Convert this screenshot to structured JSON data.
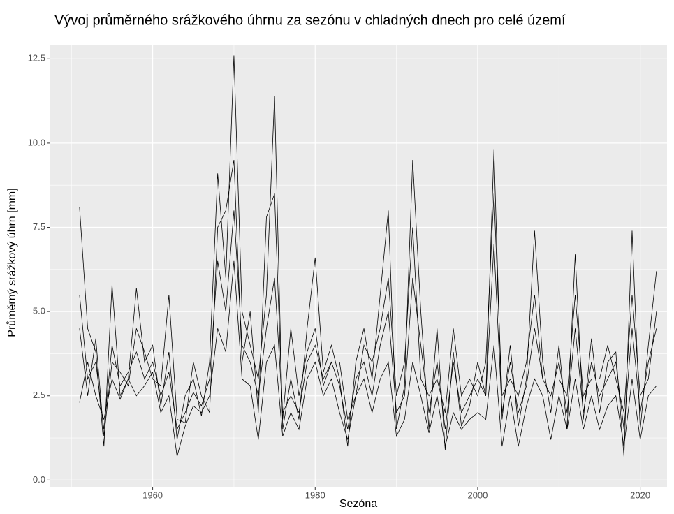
{
  "chart_data": {
    "type": "line",
    "title": "Vývoj průměrného srážkového úhrnu za sezónu v chladných dnech pro celé území",
    "xlabel": "Sezóna",
    "ylabel": "Průměrný srážkový úhrn [mm]",
    "x": [
      1951,
      1952,
      1953,
      1954,
      1955,
      1956,
      1957,
      1958,
      1959,
      1960,
      1961,
      1962,
      1963,
      1964,
      1965,
      1966,
      1967,
      1968,
      1969,
      1970,
      1971,
      1972,
      1973,
      1974,
      1975,
      1976,
      1977,
      1978,
      1979,
      1980,
      1981,
      1982,
      1983,
      1984,
      1985,
      1986,
      1987,
      1988,
      1989,
      1990,
      1991,
      1992,
      1993,
      1994,
      1995,
      1996,
      1997,
      1998,
      1999,
      2000,
      2001,
      2002,
      2003,
      2004,
      2005,
      2006,
      2007,
      2008,
      2009,
      2010,
      2011,
      2012,
      2013,
      2014,
      2015,
      2016,
      2017,
      2018,
      2019,
      2020,
      2021,
      2022
    ],
    "series": [
      {
        "color": "#000000",
        "values": [
          8.1,
          4.5,
          3.8,
          1.0,
          5.8,
          2.5,
          3.0,
          5.7,
          3.5,
          4.0,
          2.2,
          3.8,
          1.2,
          2.5,
          3.0,
          1.9,
          3.5,
          9.1,
          6.0,
          12.6,
          5.0,
          4.0,
          3.0,
          5.5,
          11.4,
          1.5,
          3.0,
          1.8,
          4.5,
          6.6,
          3.2,
          4.0,
          3.0,
          1.0,
          3.5,
          4.5,
          3.0,
          5.5,
          8.0,
          1.5,
          2.8,
          9.5,
          5.0,
          1.5,
          4.5,
          0.9,
          3.8,
          1.6,
          2.2,
          3.5,
          2.5,
          9.8,
          1.8,
          4.0,
          1.6,
          3.0,
          7.4,
          3.5,
          2.0,
          4.0,
          1.5,
          6.7,
          1.8,
          4.2,
          2.0,
          3.5,
          3.8,
          0.7,
          7.4,
          1.5,
          4.0,
          6.2
        ]
      },
      {
        "color": "#000000",
        "values": [
          5.5,
          3.0,
          3.5,
          1.5,
          4.0,
          2.8,
          3.2,
          3.8,
          3.0,
          3.5,
          2.5,
          3.2,
          1.5,
          2.0,
          2.6,
          2.2,
          3.0,
          6.5,
          5.0,
          8.0,
          4.0,
          3.5,
          2.5,
          4.5,
          6.0,
          2.0,
          2.5,
          2.0,
          3.5,
          4.0,
          3.0,
          3.5,
          2.8,
          1.5,
          3.0,
          3.5,
          2.5,
          4.0,
          5.0,
          2.0,
          2.5,
          6.0,
          4.0,
          2.0,
          3.5,
          1.5,
          3.5,
          2.0,
          2.5,
          3.0,
          2.5,
          7.0,
          2.0,
          3.5,
          2.0,
          2.8,
          4.5,
          3.0,
          2.5,
          3.5,
          2.0,
          4.5,
          2.0,
          3.5,
          2.5,
          3.0,
          3.5,
          1.5,
          4.5,
          2.0,
          3.5,
          4.5
        ]
      },
      {
        "color": "#000000",
        "values": [
          2.3,
          3.5,
          2.5,
          1.8,
          3.0,
          2.4,
          3.0,
          2.5,
          2.8,
          3.2,
          2.0,
          2.5,
          0.7,
          1.6,
          2.2,
          2.0,
          2.5,
          4.5,
          3.8,
          6.5,
          3.0,
          2.8,
          1.2,
          3.5,
          4.0,
          1.3,
          2.0,
          1.5,
          3.0,
          3.5,
          2.5,
          3.0,
          2.0,
          1.2,
          2.5,
          3.0,
          2.0,
          3.0,
          3.5,
          1.3,
          1.8,
          3.5,
          2.5,
          1.4,
          2.5,
          1.0,
          2.0,
          1.5,
          1.8,
          2.0,
          1.8,
          4.0,
          1.0,
          2.5,
          1.0,
          2.2,
          3.0,
          2.5,
          1.2,
          2.5,
          1.5,
          3.0,
          1.5,
          2.5,
          1.5,
          2.2,
          2.5,
          1.0,
          3.0,
          1.2,
          2.5,
          2.8
        ]
      },
      {
        "color": "#000000",
        "values": [
          4.5,
          2.5,
          4.2,
          1.3,
          3.5,
          3.2,
          2.8,
          4.5,
          3.8,
          3.0,
          2.8,
          5.5,
          1.8,
          1.7,
          3.5,
          2.5,
          2.0,
          7.5,
          8.0,
          9.5,
          3.5,
          5.0,
          2.0,
          7.8,
          8.5,
          1.8,
          4.5,
          2.5,
          3.8,
          4.5,
          2.8,
          3.5,
          3.5,
          1.8,
          2.5,
          4.0,
          3.5,
          4.5,
          6.0,
          2.5,
          3.5,
          7.5,
          3.0,
          2.5,
          3.0,
          2.0,
          4.5,
          2.5,
          3.0,
          2.5,
          3.5,
          8.5,
          2.5,
          3.0,
          2.5,
          3.5,
          5.5,
          3.0,
          3.0,
          3.0,
          2.5,
          5.5,
          2.5,
          3.0,
          3.0,
          4.0,
          3.0,
          2.0,
          5.5,
          2.5,
          3.0,
          5.0
        ]
      }
    ],
    "xlim": [
      1947.4,
      2023.3
    ],
    "xticks": [
      1960,
      1980,
      2000,
      2020
    ],
    "x_minor_grid": [
      1950,
      1970,
      1990,
      2010
    ],
    "ylim": [
      -0.2,
      12.9
    ],
    "yticks": [
      {
        "value": 0,
        "label": "0.0"
      },
      {
        "value": 2.5,
        "label": "2.5"
      },
      {
        "value": 5,
        "label": "5.0"
      },
      {
        "value": 7.5,
        "label": "7.5"
      },
      {
        "value": 10,
        "label": "10.0"
      },
      {
        "value": 12.5,
        "label": "12.5"
      }
    ],
    "y_minor_grid": [
      1.25,
      3.75,
      6.25,
      8.75,
      11.25
    ],
    "grid": true,
    "panel_color": "#EBEBEB"
  }
}
